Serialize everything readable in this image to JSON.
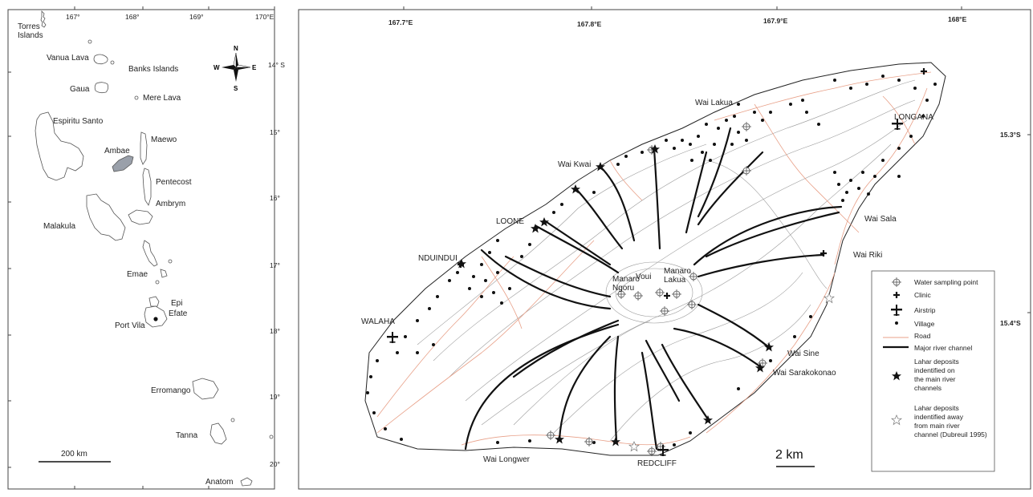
{
  "left_map": {
    "lon_ticks": [
      "167°",
      "168°",
      "169°",
      "170°E"
    ],
    "lat_ticks": [
      "14° S",
      "15°",
      "16°",
      "17°",
      "18°",
      "19°",
      "20°"
    ],
    "places": {
      "torres": "Torres\nIslands",
      "vanua_lava": "Vanua Lava",
      "banks": "Banks Islands",
      "gaua": "Gaua",
      "mere_lava": "Mere Lava",
      "espiritu_santo": "Espiritu Santo",
      "maewo": "Maewo",
      "ambae": "Ambae",
      "pentecost": "Pentecost",
      "malakula": "Malakula",
      "ambrym": "Ambrym",
      "emae": "Emae",
      "epi": "Epi",
      "efate": "Efate",
      "port_vila": "Port Vila",
      "erromango": "Erromango",
      "tanna": "Tanna",
      "anatom": "Anatom"
    },
    "scale_label": "200 km",
    "compass": {
      "n": "N",
      "s": "S",
      "e": "E",
      "w": "W"
    },
    "highlight_color": "#9aa0aa"
  },
  "right_map": {
    "lon_ticks": [
      "167.7°E",
      "167.8°E",
      "167.9°E",
      "168°E"
    ],
    "lat_ticks": [
      "15.3°S",
      "15.4°S"
    ],
    "places": {
      "wai_lakua": "Wai Lakua",
      "longana": "LONGANA",
      "wai_kwai": "Wai Kwai",
      "loone": "LOONE",
      "wai_sala": "Wai Sala",
      "wai_riki": "Wai Riki",
      "nduindui": "NDUINDUI",
      "manaro_ngoru": "Manaro\nNgoru",
      "voui": "Voui",
      "manaro_lakua": "Manaro\nLakua",
      "walaha": "WALAHA",
      "wai_sine": "Wai Sine",
      "wai_sarakokonao": "Wai Sarakokonao",
      "wai_longwer": "Wai Longwer",
      "redcliff": "REDCLIFF"
    },
    "scale_label": "2 km",
    "legend": [
      {
        "icon": "water-sampling-icon",
        "label": "Water sampling point"
      },
      {
        "icon": "clinic-icon",
        "label": "Clinic"
      },
      {
        "icon": "airstrip-icon",
        "label": "Airstrip"
      },
      {
        "icon": "village-icon",
        "label": "Village"
      },
      {
        "icon": "road-icon",
        "label": "Road"
      },
      {
        "icon": "river-icon",
        "label": "Major river channel"
      },
      {
        "icon": "lahar-main-icon",
        "label": "Lahar deposits\nindentified on\nthe main river\nchannels"
      },
      {
        "icon": "lahar-away-icon",
        "label": "Lahar deposits\nindentified away\nfrom main river\nchannel (Dubreuil 1995)"
      }
    ],
    "road_color": "#e8a088"
  }
}
